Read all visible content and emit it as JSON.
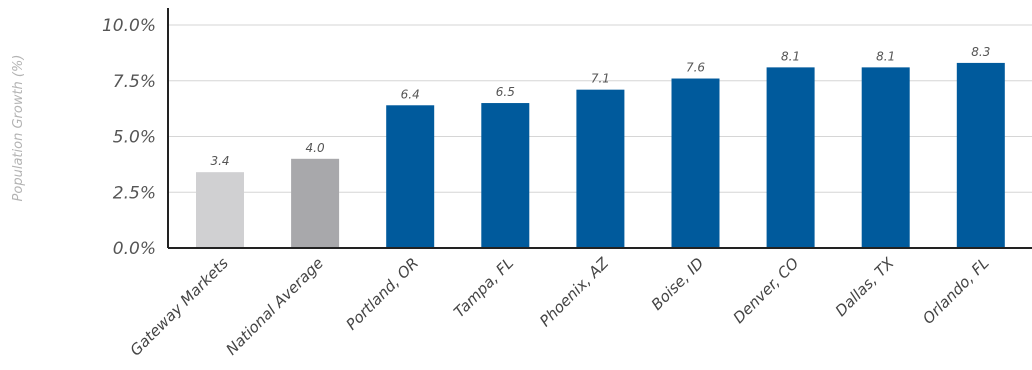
{
  "chart_data": {
    "type": "bar",
    "title": "",
    "xlabel": "",
    "ylabel": "Population Growth (%)",
    "ylim": [
      0,
      10
    ],
    "y_ticks": [
      "0.0%",
      "2.5%",
      "5.0%",
      "7.5%",
      "10.0%"
    ],
    "y_tick_values": [
      0,
      2.5,
      5,
      7.5,
      10
    ],
    "grid": true,
    "categories": [
      "Gateway Markets",
      "National Average",
      "Portland, OR",
      "Tampa, FL",
      "Phoenix, AZ",
      "Boise, ID",
      "Denver, CO",
      "Dallas, TX",
      "Orlando, FL"
    ],
    "values": [
      3.4,
      4.0,
      6.4,
      6.5,
      7.1,
      7.6,
      8.1,
      8.1,
      8.3
    ],
    "data_labels": [
      "3.4",
      "4.0",
      "6.4",
      "6.5",
      "7.1",
      "7.6",
      "8.1",
      "8.1",
      "8.3"
    ],
    "bar_colors": [
      "#d0d0d2",
      "#a8a8ab",
      "#005a9c",
      "#005a9c",
      "#005a9c",
      "#005a9c",
      "#005a9c",
      "#005a9c",
      "#005a9c"
    ],
    "colors": {
      "grid": "#d6d6d6",
      "axis": "#222222"
    }
  }
}
